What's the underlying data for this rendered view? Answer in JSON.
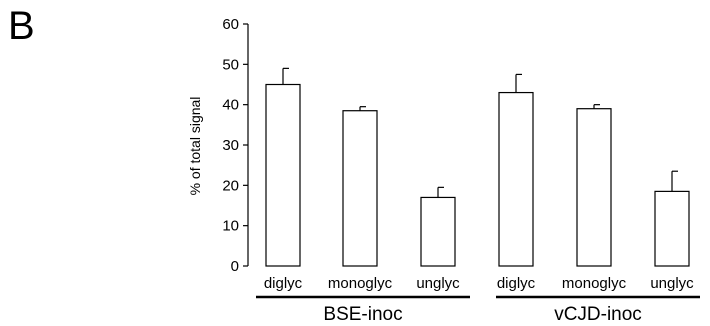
{
  "panel_label": "B",
  "chart_data": {
    "type": "bar",
    "ylabel": "% of total signal",
    "xlabel": "",
    "ylim": [
      0,
      60
    ],
    "yticks": [
      0,
      10,
      20,
      30,
      40,
      50,
      60
    ],
    "categories": [
      "diglyc",
      "monoglyc",
      "unglyc",
      "diglyc",
      "monoglyc",
      "unglyc"
    ],
    "values": [
      45,
      38.5,
      17,
      43,
      39,
      18.5
    ],
    "errors": [
      4,
      1,
      2.5,
      4.5,
      1,
      5
    ],
    "groups": [
      {
        "name": "BSE-inoc",
        "categories": [
          0,
          1,
          2
        ]
      },
      {
        "name": "vCJD-inoc",
        "categories": [
          3,
          4,
          5
        ]
      }
    ],
    "grid": false,
    "bar_fill": "#ffffff",
    "bar_stroke": "#000000"
  }
}
